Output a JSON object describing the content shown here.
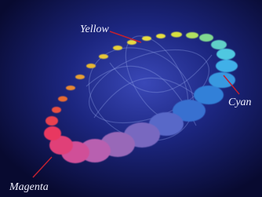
{
  "labels": {
    "yellow": "Yellow",
    "cyan": "Cyan",
    "magenta": "Magenta"
  }
}
